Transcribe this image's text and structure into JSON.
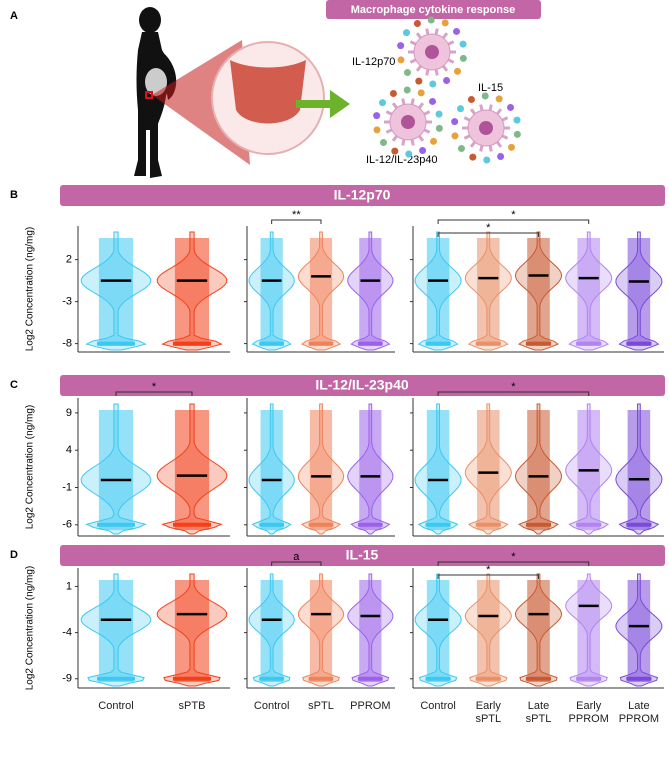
{
  "panel_a": {
    "label": "A",
    "title": "Macrophage cytokine response",
    "cytokines": [
      "IL-12p70",
      "IL-15",
      "IL-12/IL-23p40"
    ]
  },
  "chart_data": [
    {
      "type": "violin",
      "panel": "B",
      "title": "IL-12p70",
      "y_label": "Log2 Concentration (ng/mg)",
      "ylim": [
        -9,
        6
      ],
      "yticks": [
        -8,
        -3,
        2
      ],
      "detection_floor": -8,
      "subplots": [
        {
          "colors": [
            "#3cc8f2",
            "#f2401a"
          ],
          "medians": [
            -0.5,
            -0.5
          ],
          "significance": []
        },
        {
          "colors": [
            "#3cc8f2",
            "#f0825a",
            "#9a62ea"
          ],
          "medians": [
            -0.5,
            0,
            -0.5
          ],
          "significance": [
            {
              "from": 0,
              "to": 1,
              "label": "**"
            }
          ]
        },
        {
          "colors": [
            "#3cc8f2",
            "#ea9068",
            "#c85a32",
            "#b184f0",
            "#7a4ad8"
          ],
          "medians": [
            -0.5,
            -0.2,
            0.1,
            -0.2,
            -0.6
          ],
          "significance": [
            {
              "from": 0,
              "to": 3,
              "label": "*"
            },
            {
              "from": 0,
              "to": 2,
              "label": "*"
            }
          ]
        }
      ]
    },
    {
      "type": "violin",
      "panel": "C",
      "title": "IL-12/IL-23p40",
      "y_label": "Log2 Concentration (ng/mg)",
      "ylim": [
        -7.5,
        11
      ],
      "yticks": [
        -6,
        -1,
        4,
        9
      ],
      "detection_floor": -6,
      "subplots": [
        {
          "colors": [
            "#3cc8f2",
            "#f2401a"
          ],
          "medians": [
            0,
            0.6
          ],
          "significance": [
            {
              "from": 0,
              "to": 1,
              "label": "*"
            }
          ]
        },
        {
          "colors": [
            "#3cc8f2",
            "#f0825a",
            "#9a62ea"
          ],
          "medians": [
            0,
            0.5,
            0.5
          ],
          "significance": []
        },
        {
          "colors": [
            "#3cc8f2",
            "#ea9068",
            "#c85a32",
            "#b184f0",
            "#7a4ad8"
          ],
          "medians": [
            0,
            1,
            0.5,
            1.3,
            0.1
          ],
          "significance": [
            {
              "from": 0,
              "to": 3,
              "label": "*"
            }
          ]
        }
      ]
    },
    {
      "type": "violin",
      "panel": "D",
      "title": "IL-15",
      "y_label": "Log2 Concentration (ng/mg)",
      "ylim": [
        -10,
        3
      ],
      "yticks": [
        -9,
        -4,
        1
      ],
      "detection_floor": -9,
      "subplots": [
        {
          "categories": [
            "Control",
            "sPTB"
          ],
          "colors": [
            "#3cc8f2",
            "#f2401a"
          ],
          "medians": [
            -2.6,
            -2
          ],
          "significance": []
        },
        {
          "categories": [
            "Control",
            "sPTL",
            "PPROM"
          ],
          "colors": [
            "#3cc8f2",
            "#f0825a",
            "#9a62ea"
          ],
          "medians": [
            -2.6,
            -2,
            -2.2
          ],
          "significance": [
            {
              "from": 0,
              "to": 1,
              "label": "a"
            }
          ]
        },
        {
          "categories": [
            "Control",
            "Early sPTL",
            "Late sPTL",
            "Early PPROM",
            "Late PPROM"
          ],
          "colors": [
            "#3cc8f2",
            "#ea9068",
            "#c85a32",
            "#b184f0",
            "#7a4ad8"
          ],
          "medians": [
            -2.6,
            -2.2,
            -2,
            -1.1,
            -3.3
          ],
          "significance": [
            {
              "from": 0,
              "to": 3,
              "label": "*"
            },
            {
              "from": 0,
              "to": 2,
              "label": "*"
            }
          ]
        }
      ]
    }
  ]
}
